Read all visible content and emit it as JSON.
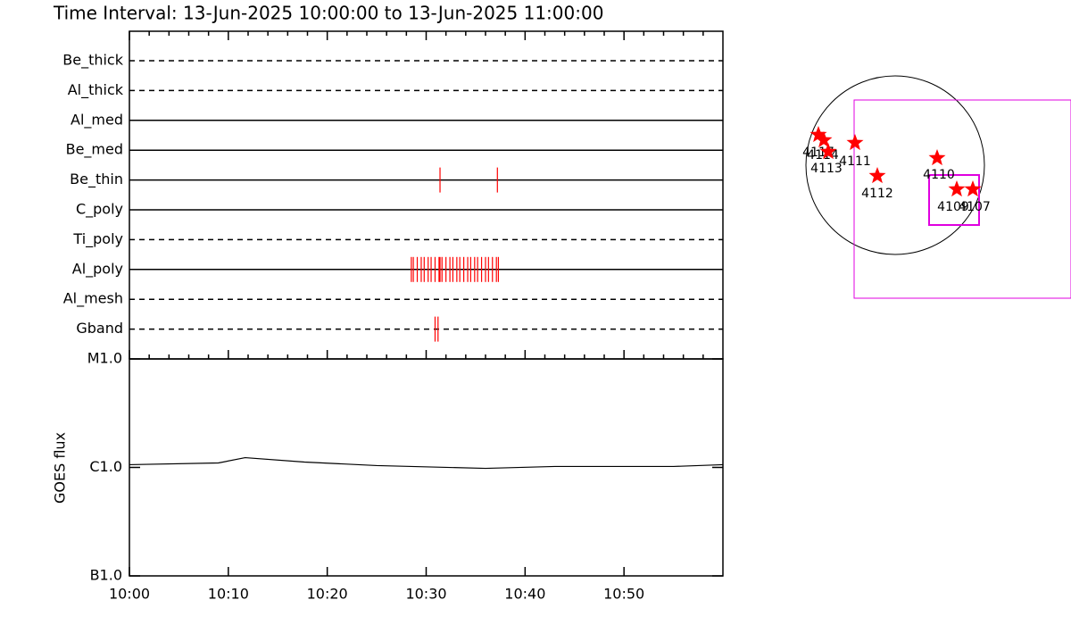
{
  "chart_data": [
    {
      "type": "timeline",
      "title": "Time Interval: 13-Jun-2025 10:00:00 to 13-Jun-2025 11:00:00",
      "color": "#ff0000",
      "xlim": [
        0,
        60
      ],
      "xticks": [
        0,
        2,
        4,
        6,
        8,
        10,
        12,
        14,
        16,
        18,
        20,
        22,
        24,
        26,
        28,
        30,
        32,
        34,
        36,
        38,
        40,
        42,
        44,
        46,
        48,
        50,
        52,
        54,
        56,
        58
      ],
      "rows": [
        {
          "name": "Be_thick",
          "style": "dashed",
          "events": []
        },
        {
          "name": "Al_thick",
          "style": "dashed",
          "events": []
        },
        {
          "name": "Al_med",
          "style": "solid",
          "events": []
        },
        {
          "name": "Be_med",
          "style": "solid",
          "events": []
        },
        {
          "name": "Be_thin",
          "style": "solid",
          "events": [
            31.4,
            37.2
          ]
        },
        {
          "name": "C_poly",
          "style": "solid",
          "events": []
        },
        {
          "name": "Ti_poly",
          "style": "dashed",
          "events": []
        },
        {
          "name": "Al_poly",
          "style": "solid",
          "events": [
            28.5,
            28.7,
            29.1,
            29.5,
            29.8,
            30.2,
            30.5,
            30.9,
            31.3,
            31.4,
            31.6,
            32.0,
            32.4,
            32.7,
            33.1,
            33.4,
            33.8,
            34.2,
            34.5,
            34.9,
            35.2,
            35.6,
            36.0,
            36.3,
            36.7,
            37.1,
            37.3
          ]
        },
        {
          "name": "Al_mesh",
          "style": "dashed",
          "events": []
        },
        {
          "name": "Gband",
          "style": "dashed",
          "events": [
            30.9,
            31.2
          ]
        }
      ]
    },
    {
      "type": "line",
      "ylabel": "GOES flux",
      "log_scale": true,
      "color": "#000000",
      "x": [
        0,
        9,
        11.7,
        17.7,
        25,
        36,
        43,
        55,
        60
      ],
      "values": [
        1.06e-06,
        1.1e-06,
        1.23e-06,
        1.12e-06,
        1.04e-06,
        9.8e-07,
        1.02e-06,
        1.02e-06,
        1.06e-06
      ],
      "xlim": [
        0,
        60
      ],
      "xticks": [
        {
          "value": 0,
          "label": "10:00"
        },
        {
          "value": 10,
          "label": "10:10"
        },
        {
          "value": 20,
          "label": "10:20"
        },
        {
          "value": 30,
          "label": "10:30"
        },
        {
          "value": 40,
          "label": "10:40"
        },
        {
          "value": 50,
          "label": "10:50"
        }
      ],
      "ylim": [
        1e-07,
        1e-05
      ],
      "yticks": [
        {
          "value": 1e-07,
          "label": "B1.0"
        },
        {
          "value": 1e-06,
          "label": "C1.0"
        },
        {
          "value": 1e-05,
          "label": "M1.0"
        }
      ]
    },
    {
      "type": "map",
      "color": "#ff0000",
      "box_color": "#e000e0",
      "regions": [
        "4117",
        "4114",
        "4113",
        "4111",
        "4112",
        "4110",
        "4109",
        "4107"
      ]
    }
  ]
}
